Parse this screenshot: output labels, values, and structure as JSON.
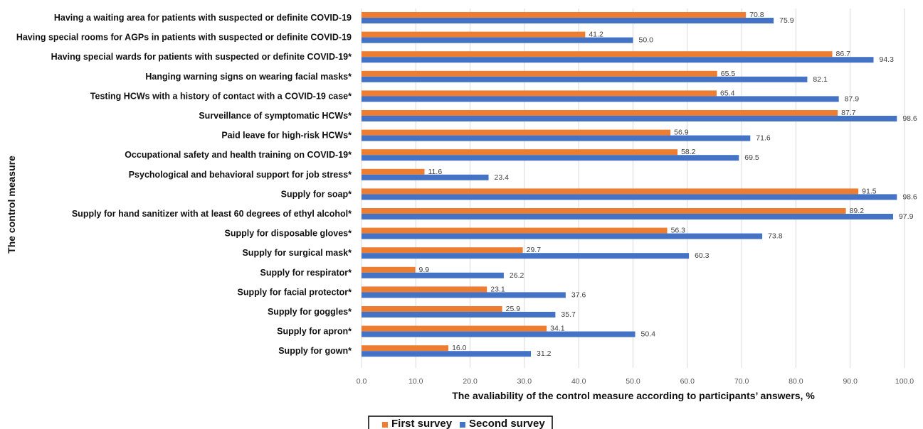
{
  "chart_data": {
    "type": "bar",
    "orientation": "horizontal",
    "categories": [
      "Having a waiting area for patients with suspected or definite COVID-19",
      "Having special rooms for AGPs in patients with suspected or definite COVID-19",
      "Having special wards for patients with suspected or definite COVID-19*",
      "Hanging warning signs on wearing facial masks*",
      "Testing HCWs with a history of contact with a COVID-19 case*",
      "Surveillance of symptomatic HCWs*",
      "Paid leave for high-risk HCWs*",
      "Occupational safety and health training on COVID-19*",
      "Psychological and behavioral support for job stress*",
      "Supply for soap*",
      "Supply for hand sanitizer with at least 60 degrees of ethyl alcohol*",
      "Supply for disposable gloves*",
      "Supply for surgical mask*",
      "Supply for respirator*",
      "Supply for facial protector*",
      "Supply for goggles*",
      "Supply for apron*",
      "Supply for gown*"
    ],
    "series": [
      {
        "name": "First survey",
        "color": "#ED7D31",
        "values": [
          70.8,
          41.2,
          86.7,
          65.5,
          65.4,
          87.7,
          56.9,
          58.2,
          11.6,
          91.5,
          89.2,
          56.3,
          29.7,
          9.9,
          23.1,
          25.9,
          34.1,
          16.0
        ]
      },
      {
        "name": "Second survey",
        "color": "#4472C4",
        "values": [
          75.9,
          50.0,
          94.3,
          82.1,
          87.9,
          98.6,
          71.6,
          69.5,
          23.4,
          98.6,
          97.9,
          73.8,
          60.3,
          26.2,
          37.6,
          35.7,
          50.4,
          31.2
        ]
      }
    ],
    "xlabel": "The avaliability of the control measure according to participants’ answers, %",
    "ylabel": "The control measure",
    "xlim": [
      0,
      100
    ],
    "xticks": [
      "0.0",
      "10.0",
      "20.0",
      "30.0",
      "40.0",
      "50.0",
      "60.0",
      "70.0",
      "80.0",
      "90.0",
      "100.0"
    ],
    "grid": "vertical",
    "legend_position": "bottom"
  }
}
